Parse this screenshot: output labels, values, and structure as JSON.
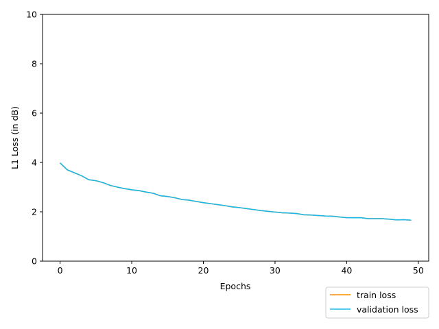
{
  "chart_data": {
    "type": "line",
    "title": "",
    "xlabel": "Epochs",
    "ylabel": "L1 Loss (in dB)",
    "xlim": [
      -2.45,
      51.45
    ],
    "ylim": [
      0,
      10
    ],
    "xticks": [
      0,
      10,
      20,
      30,
      40,
      50
    ],
    "yticks": [
      0,
      2,
      4,
      6,
      8,
      10
    ],
    "grid": false,
    "legend_position": "bottom-right, below axes",
    "series": [
      {
        "name": "train loss",
        "color": "#ff8c00",
        "x": [
          0,
          1,
          2,
          3,
          4,
          5,
          6,
          7,
          8,
          9,
          10,
          11,
          12,
          13,
          14,
          15,
          16,
          17,
          18,
          19,
          20,
          21,
          22,
          23,
          24,
          25,
          26,
          27,
          28,
          29,
          30,
          31,
          32,
          33,
          34,
          35,
          36,
          37,
          38,
          39,
          40,
          41,
          42,
          43,
          44,
          45,
          46,
          47,
          48,
          49
        ],
        "y": [
          3.98,
          3.7,
          3.58,
          3.46,
          3.3,
          3.26,
          3.18,
          3.07,
          3.0,
          2.94,
          2.89,
          2.86,
          2.8,
          2.75,
          2.65,
          2.62,
          2.57,
          2.5,
          2.47,
          2.42,
          2.37,
          2.33,
          2.29,
          2.25,
          2.2,
          2.17,
          2.13,
          2.09,
          2.05,
          2.02,
          1.99,
          1.96,
          1.95,
          1.93,
          1.88,
          1.87,
          1.85,
          1.83,
          1.82,
          1.79,
          1.76,
          1.76,
          1.76,
          1.72,
          1.72,
          1.72,
          1.7,
          1.67,
          1.68,
          1.66
        ]
      },
      {
        "name": "validation loss",
        "color": "#1ab8e8",
        "x": [
          0,
          1,
          2,
          3,
          4,
          5,
          6,
          7,
          8,
          9,
          10,
          11,
          12,
          13,
          14,
          15,
          16,
          17,
          18,
          19,
          20,
          21,
          22,
          23,
          24,
          25,
          26,
          27,
          28,
          29,
          30,
          31,
          32,
          33,
          34,
          35,
          36,
          37,
          38,
          39,
          40,
          41,
          42,
          43,
          44,
          45,
          46,
          47,
          48,
          49
        ],
        "y": [
          3.98,
          3.7,
          3.58,
          3.46,
          3.3,
          3.26,
          3.18,
          3.07,
          3.0,
          2.94,
          2.89,
          2.86,
          2.8,
          2.75,
          2.65,
          2.62,
          2.57,
          2.5,
          2.47,
          2.42,
          2.37,
          2.33,
          2.29,
          2.25,
          2.2,
          2.17,
          2.13,
          2.09,
          2.05,
          2.02,
          1.99,
          1.96,
          1.95,
          1.93,
          1.88,
          1.87,
          1.85,
          1.83,
          1.82,
          1.79,
          1.76,
          1.76,
          1.76,
          1.72,
          1.72,
          1.72,
          1.7,
          1.67,
          1.68,
          1.66
        ]
      }
    ]
  }
}
